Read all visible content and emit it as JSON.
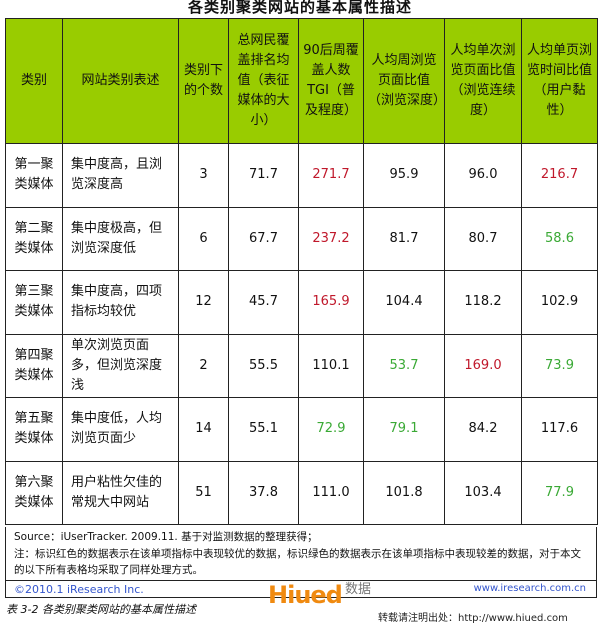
{
  "title": "各类别聚类网站的基本属性描述",
  "colors": {
    "header_bg": "#99cc00",
    "good": "#c0182b",
    "poor": "#3aa935"
  },
  "headers": [
    "类别",
    "网站类别表述",
    "类别下的个数",
    "总网民覆盖排名均值（表征媒体的大小）",
    "90后周覆盖人数 TGI（普及程度）",
    "人均周浏览页面比值（浏览深度）",
    "人均单次浏览页面比值（浏览连续度）",
    "人均单页浏览时间比值（用户黏性）"
  ],
  "rows": [
    {
      "cat": "第一聚类媒体",
      "desc": "集中度高，且浏览深度高",
      "n": "3",
      "rank": "71.7",
      "tgi": "271.7",
      "week": "95.9",
      "single": "96.0",
      "time": "216.7",
      "marks": [
        "",
        "",
        "red",
        "",
        "",
        "red"
      ]
    },
    {
      "cat": "第二聚类媒体",
      "desc": "集中度极高，但浏览深度低",
      "n": "6",
      "rank": "67.7",
      "tgi": "237.2",
      "week": "81.7",
      "single": "80.7",
      "time": "58.6",
      "marks": [
        "",
        "",
        "red",
        "",
        "",
        "green"
      ]
    },
    {
      "cat": "第三聚类媒体",
      "desc": "集中度高，四项指标均较优",
      "n": "12",
      "rank": "45.7",
      "tgi": "165.9",
      "week": "104.4",
      "single": "118.2",
      "time": "102.9",
      "marks": [
        "",
        "",
        "red",
        "",
        "",
        ""
      ]
    },
    {
      "cat": "第四聚类媒体",
      "desc": "单次浏览页面多，但浏览深度浅",
      "n": "2",
      "rank": "55.5",
      "tgi": "110.1",
      "week": "53.7",
      "single": "169.0",
      "time": "73.9",
      "marks": [
        "",
        "",
        "",
        "green",
        "red",
        "green"
      ]
    },
    {
      "cat": "第五聚类媒体",
      "desc": "集中度低，人均浏览页面少",
      "n": "14",
      "rank": "55.1",
      "tgi": "72.9",
      "week": "79.1",
      "single": "84.2",
      "time": "117.6",
      "marks": [
        "",
        "",
        "green",
        "green",
        "",
        ""
      ]
    },
    {
      "cat": "第六聚类媒体",
      "desc": "用户粘性欠佳的常规大中网站",
      "n": "51",
      "rank": "37.8",
      "tgi": "111.0",
      "week": "101.8",
      "single": "103.4",
      "time": "77.9",
      "marks": [
        "",
        "",
        "",
        "",
        "",
        "green"
      ]
    }
  ],
  "footer": {
    "source": "Source：iUserTracker. 2009.11. 基于对监测数据的整理获得；",
    "note": "注：标识红色的数据表示在该单项指标中表现较优的数据，标识绿色的数据表示在该单项指标中表现较差的数据，对于本文的以下所有表格均采取了同样处理方式。",
    "copyright": "©2010.1 iResearch Inc.",
    "url": "www.iresearch.com.cn"
  },
  "caption": "表 3-2 各类别聚类网站的基本属性描述",
  "watermark": {
    "brand": "Hiued",
    "sub": "数据",
    "com": ".com",
    "repost": "转载请注明出处：http://www.hiued.com"
  }
}
